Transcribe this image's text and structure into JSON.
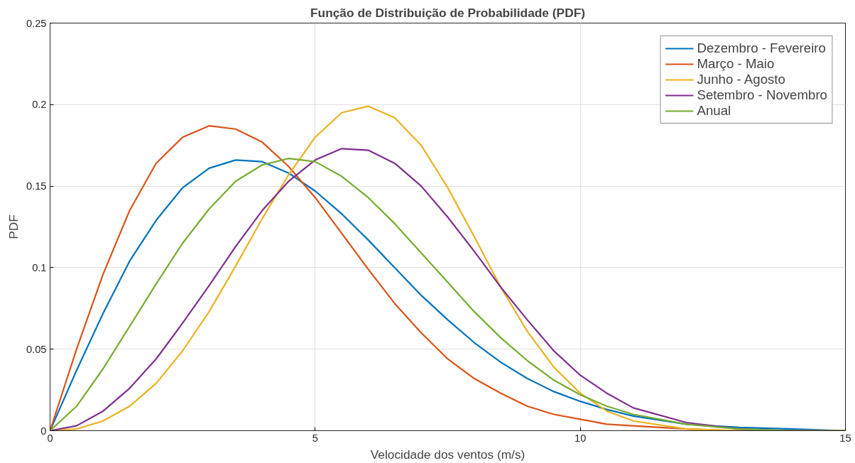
{
  "chart_data": {
    "type": "line",
    "title": "Função de Distribuição de Probabilidade (PDF)",
    "xlabel": "Velocidade dos ventos (m/s)",
    "ylabel": "PDF",
    "x": [
      0,
      0.5,
      1,
      1.5,
      2,
      2.5,
      3,
      3.5,
      4,
      4.5,
      5,
      5.5,
      6,
      6.5,
      7,
      7.5,
      8,
      8.5,
      9,
      9.5,
      10,
      10.5,
      11,
      12,
      13,
      14,
      15
    ],
    "series": [
      {
        "name": "Dezembro - Fevereiro",
        "color": "#0072bd",
        "values": [
          0,
          0.037,
          0.072,
          0.104,
          0.129,
          0.149,
          0.161,
          0.166,
          0.165,
          0.158,
          0.147,
          0.133,
          0.117,
          0.1,
          0.083,
          0.068,
          0.054,
          0.042,
          0.032,
          0.024,
          0.018,
          0.013,
          0.009,
          0.004,
          0.002,
          0.001,
          0
        ]
      },
      {
        "name": "Março - Maio",
        "color": "#d95319",
        "values": [
          0,
          0.05,
          0.096,
          0.135,
          0.164,
          0.18,
          0.187,
          0.185,
          0.177,
          0.162,
          0.143,
          0.121,
          0.099,
          0.078,
          0.06,
          0.044,
          0.032,
          0.023,
          0.015,
          0.01,
          0.007,
          0.004,
          0.003,
          0.001,
          0,
          0,
          0
        ]
      },
      {
        "name": "Junho - Agosto",
        "color": "#edb120",
        "values": [
          0,
          0.001,
          0.006,
          0.015,
          0.029,
          0.049,
          0.073,
          0.101,
          0.13,
          0.157,
          0.18,
          0.195,
          0.199,
          0.192,
          0.175,
          0.149,
          0.119,
          0.088,
          0.061,
          0.039,
          0.023,
          0.012,
          0.006,
          0.001,
          0,
          0,
          0
        ]
      },
      {
        "name": "Setembro - Novembro",
        "color": "#7e2f8e",
        "values": [
          0,
          0.003,
          0.012,
          0.026,
          0.044,
          0.066,
          0.089,
          0.113,
          0.135,
          0.153,
          0.166,
          0.173,
          0.172,
          0.164,
          0.15,
          0.131,
          0.11,
          0.088,
          0.068,
          0.049,
          0.034,
          0.023,
          0.014,
          0.005,
          0.001,
          0,
          0
        ]
      },
      {
        "name": "Anual",
        "color": "#77ac30",
        "values": [
          0,
          0.015,
          0.038,
          0.064,
          0.09,
          0.115,
          0.136,
          0.153,
          0.163,
          0.167,
          0.165,
          0.156,
          0.143,
          0.127,
          0.109,
          0.091,
          0.073,
          0.057,
          0.043,
          0.031,
          0.022,
          0.015,
          0.01,
          0.004,
          0.001,
          0,
          0
        ]
      }
    ],
    "xlim": [
      0,
      15
    ],
    "ylim": [
      0,
      0.25
    ],
    "xticks": [
      0,
      5,
      10,
      15
    ],
    "yticks": [
      0,
      0.05,
      0.1,
      0.15,
      0.2,
      0.25
    ],
    "grid": true,
    "legend": "top right",
    "line_style": "solid",
    "marker": "none"
  }
}
